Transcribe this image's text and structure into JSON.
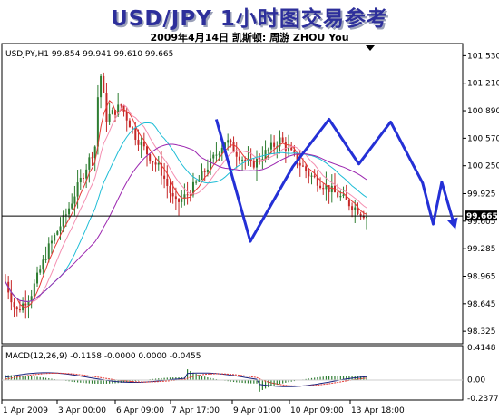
{
  "header": {
    "title": "USD/JPY 1小时图交易参考",
    "subtitle": "2009年4月14日   凯斯顿: 周游 ZHOU You"
  },
  "chart_data": {
    "type": "candlestick",
    "instrument_label": "USDJPY,H1  99.854 99.941 99.610 99.665",
    "ylim": [
      98.2,
      101.65
    ],
    "y_ticks": [
      "101.530",
      "101.210",
      "100.890",
      "100.570",
      "100.250",
      "99.925",
      "99.605",
      "99.285",
      "98.965",
      "98.645",
      "98.325"
    ],
    "x_ticks": [
      "1 Apr 2009",
      "3 Apr 00:00",
      "6 Apr 09:00",
      "7 Apr 17:00",
      "9 Apr 01:00",
      "10 Apr 09:00",
      "13 Apr 18:00"
    ],
    "current_price": "99.665",
    "projection_path": [
      {
        "x": "7 Apr 04:00",
        "y": 100.79
      },
      {
        "x": "7 Apr 20:00",
        "y": 99.37
      },
      {
        "x": "8 Apr 16:00",
        "y": 100.24
      },
      {
        "x": "9 Apr 09:00",
        "y": 100.79
      },
      {
        "x": "9 Apr 23:00",
        "y": 100.27
      },
      {
        "x": "10 Apr 14:00",
        "y": 100.76
      },
      {
        "x": "13 Apr 05:00",
        "y": 100.05
      },
      {
        "x": "13 Apr 10:00",
        "y": 99.57
      },
      {
        "x": "13 Apr 14:00",
        "y": 100.06
      },
      {
        "x": "13 Apr 20:00",
        "y": 99.55
      }
    ],
    "macd": {
      "label": "MACD(12,26,9) -0.1158 -0.0000 0.0000 -0.0455",
      "y_ticks": [
        "0.4148",
        "0.00",
        "-0.2377"
      ]
    },
    "colors": {
      "background": "#ffffff",
      "bull_candle": "#2e7d32",
      "bear_candle": "#c62828",
      "ma_fast": "#e53935",
      "ma_mid": "#f48fb1",
      "ma_slow": "#9c27b0",
      "ma_cyan": "#1ebdd6",
      "projection": "#2430d6",
      "macd_hist": "#2e7d32",
      "macd_line": "#1a237e",
      "signal_line": "#e53935"
    }
  }
}
